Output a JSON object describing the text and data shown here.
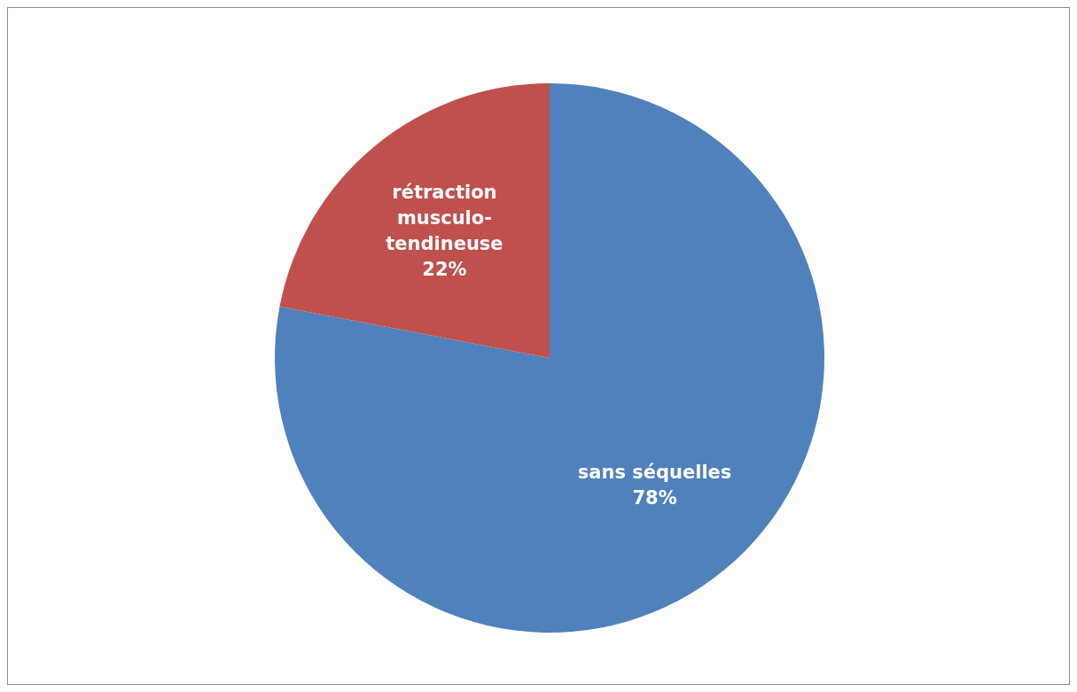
{
  "chart_data": {
    "type": "pie",
    "categories": [
      "sans séquelles",
      "rétraction musculo-tendineuse"
    ],
    "values": [
      78,
      22
    ],
    "colors": [
      "#4f81bd",
      "#c0504d"
    ],
    "value_labels": [
      "78%",
      "22%"
    ],
    "legend": false
  }
}
